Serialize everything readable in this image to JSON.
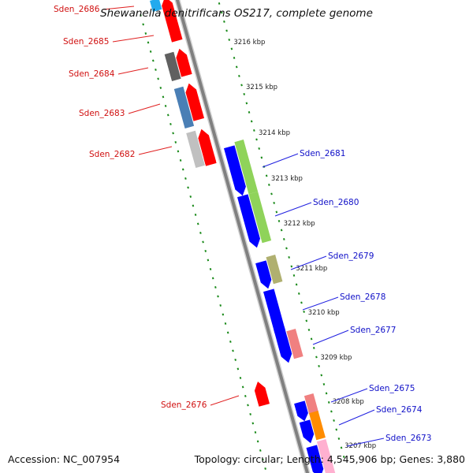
{
  "title": "Shewanella denitrificans OS217, complete genome",
  "accession": "Accession: NC_007954",
  "summary": "Topology: circular; Length: 4,545,906 bp; Genes: 3,880",
  "colors": {
    "backbone": "#808080",
    "tick_major": "#1a8a1a",
    "forward_label": "#1010c8",
    "reverse_label": "#d01010",
    "label_line_forward": "#2020e0",
    "label_line_reverse": "#e02020"
  },
  "tick_labels": [
    "3216 kbp",
    "3215 kbp",
    "3214 kbp",
    "3213 kbp",
    "3212 kbp",
    "3211 kbp",
    "3210 kbp",
    "3209 kbp",
    "3208 kbp",
    "3207 kbp"
  ],
  "genes": [
    {
      "name": "Sden_2686",
      "strand": "reverse",
      "color": "#ff0000"
    },
    {
      "name": "Sden_2685",
      "strand": "reverse",
      "color": "#ff0000"
    },
    {
      "name": "Sden_2684",
      "strand": "reverse",
      "color": "#ff0000"
    },
    {
      "name": "Sden_2683",
      "strand": "reverse",
      "color": "#ff0000"
    },
    {
      "name": "Sden_2682",
      "strand": "reverse",
      "color": "#ff0000"
    },
    {
      "name": "Sden_2681",
      "strand": "forward",
      "color": "#0000ff"
    },
    {
      "name": "Sden_2680",
      "strand": "forward",
      "color": "#0000ff"
    },
    {
      "name": "Sden_2679",
      "strand": "forward",
      "color": "#0000ff"
    },
    {
      "name": "Sden_2678",
      "strand": "forward",
      "color": "#0000ff"
    },
    {
      "name": "Sden_2677",
      "strand": "forward",
      "color": "#0000ff"
    },
    {
      "name": "Sden_2676",
      "strand": "reverse",
      "color": "#ff0000"
    },
    {
      "name": "Sden_2675",
      "strand": "forward",
      "color": "#0000ff"
    },
    {
      "name": "Sden_2674",
      "strand": "forward",
      "color": "#0000ff"
    },
    {
      "name": "Sden_2673",
      "strand": "forward",
      "color": "#0000ff"
    }
  ],
  "cog_colors": [
    {
      "gene": "Sden_2686",
      "color": "#22aaee"
    },
    {
      "gene": "Sden_2684",
      "color": "#606060"
    },
    {
      "gene": "Sden_2683",
      "color": "#4a7fb5"
    },
    {
      "gene": "Sden_2682",
      "color": "#c0c0c0"
    },
    {
      "gene": "Sden_2681",
      "color": "#8fd35a"
    },
    {
      "gene": "Sden_2680",
      "color": "#8fd35a"
    },
    {
      "gene": "Sden_2679",
      "color": "#b0b070"
    },
    {
      "gene": "Sden_2677",
      "color": "#f08080"
    },
    {
      "gene": "Sden_2675",
      "color": "#f08080"
    },
    {
      "gene": "Sden_2674",
      "color": "#ff8c00"
    },
    {
      "gene": "Sden_2673",
      "color": "#ffb0d0"
    }
  ]
}
